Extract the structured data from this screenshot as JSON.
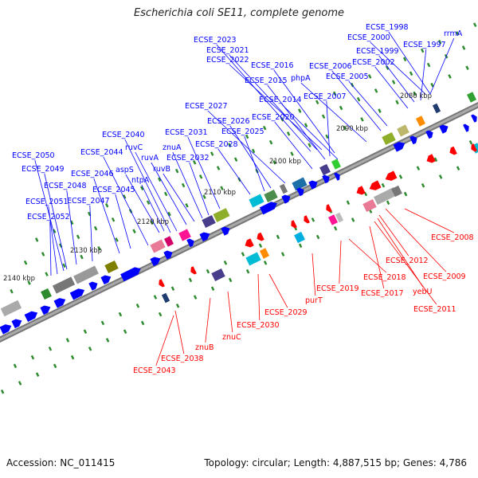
{
  "title": "Escherichia coli SE11, complete genome",
  "footer": {
    "accession": "Accession: NC_011415",
    "summary": "Topology: circular; Length: 4,887,515 bp; Genes: 4,786"
  },
  "colors": {
    "forward_gene": "#0000ff",
    "reverse_gene": "#ff0000",
    "tick_dot": "#2e8b2e",
    "axis": "#888888"
  },
  "scale_labels": [
    "2080 kbp",
    "2090 kbp",
    "2100 kbp",
    "2110 kbp",
    "2120 kbp",
    "2130 kbp",
    "2140 kbp"
  ],
  "forward_labels": [
    "ECSE_1998",
    "rrmA",
    "ECSE_2000",
    "ECSE_1997",
    "ECSE_1999",
    "ECSE_2002",
    "ECSE_2023",
    "ECSE_2021",
    "ECSE_2022",
    "ECSE_2016",
    "ECSE_2006",
    "ECSE_2005",
    "ECSE_2015",
    "phpA",
    "ECSE_2014",
    "ECSE_2007",
    "ECSE_2027",
    "ECSE_2020",
    "ECSE_2026",
    "ECSE_2025",
    "ECSE_2040",
    "ECSE_2031",
    "ECSE_2028",
    "ruvC",
    "znuA",
    "ECSE_2044",
    "ruvA",
    "ECSE_2032",
    "ECSE_2050",
    "aspS",
    "ruvB",
    "ECSE_2049",
    "ntpA",
    "ECSE_2046",
    "ECSE_2048",
    "ECSE_2045",
    "ECSE_2051",
    "ECSE_2047",
    "ECSE_2052"
  ],
  "reverse_labels": [
    "ECSE_2008",
    "ECSE_2012",
    "ECSE_2009",
    "ECSE_2018",
    "yebU",
    "ECSE_2019",
    "ECSE_2017",
    "purT",
    "ECSE_2011",
    "ECSE_2029",
    "ECSE_2030",
    "znuC",
    "znuB",
    "ECSE_2038",
    "ECSE_2043"
  ]
}
